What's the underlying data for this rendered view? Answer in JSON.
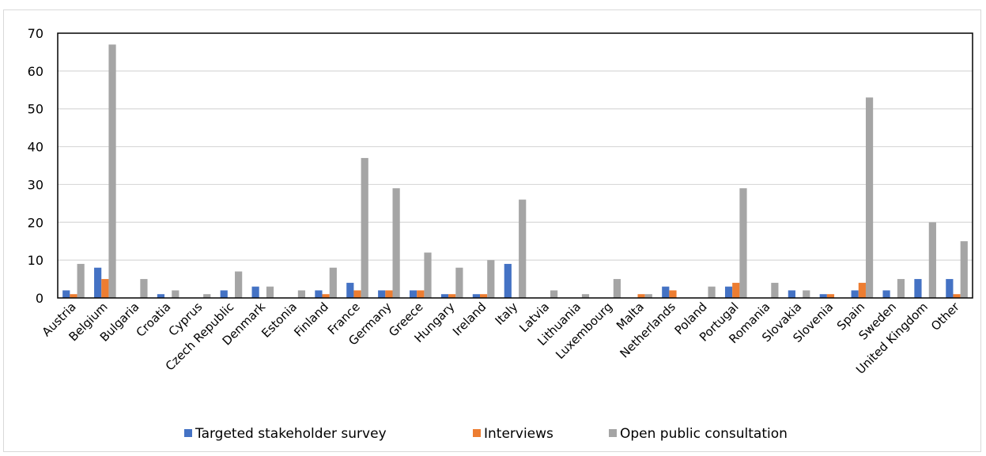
{
  "chart_data": {
    "type": "bar",
    "categories": [
      "Austria",
      "Belgium",
      "Bulgaria",
      "Croatia",
      "Cyprus",
      "Czech Republic",
      "Denmark",
      "Estonia",
      "Finland",
      "France",
      "Germany",
      "Greece",
      "Hungary",
      "Ireland",
      "Italy",
      "Latvia",
      "Lithuania",
      "Luxembourg",
      "Malta",
      "Netherlands",
      "Poland",
      "Portugal",
      "Romania",
      "Slovakia",
      "Slovenia",
      "Spain",
      "Sweden",
      "United Kingdom",
      "Other"
    ],
    "series": [
      {
        "name": "Targeted stakeholder survey",
        "color": "#4472c4",
        "values": [
          2,
          8,
          0,
          1,
          0,
          2,
          3,
          0,
          2,
          4,
          2,
          2,
          1,
          1,
          9,
          0,
          0,
          0,
          0,
          3,
          0,
          3,
          0,
          2,
          1,
          2,
          2,
          5,
          5
        ]
      },
      {
        "name": "Interviews",
        "color": "#ed7d31",
        "values": [
          1,
          5,
          0,
          0,
          0,
          0,
          0,
          0,
          1,
          2,
          2,
          2,
          1,
          1,
          0,
          0,
          0,
          0,
          1,
          2,
          0,
          4,
          0,
          0,
          1,
          4,
          0,
          0,
          1
        ]
      },
      {
        "name": "Open public consultation",
        "color": "#a5a5a5",
        "values": [
          9,
          67,
          5,
          2,
          1,
          7,
          3,
          2,
          8,
          37,
          29,
          12,
          8,
          10,
          26,
          2,
          1,
          5,
          1,
          0,
          3,
          29,
          4,
          2,
          0,
          53,
          5,
          20,
          15
        ]
      }
    ],
    "y_ticks": [
      "0",
      "10",
      "20",
      "30",
      "40",
      "50",
      "60",
      "70"
    ],
    "ylim": [
      0,
      70
    ],
    "grid": true,
    "legend_position": "bottom"
  }
}
